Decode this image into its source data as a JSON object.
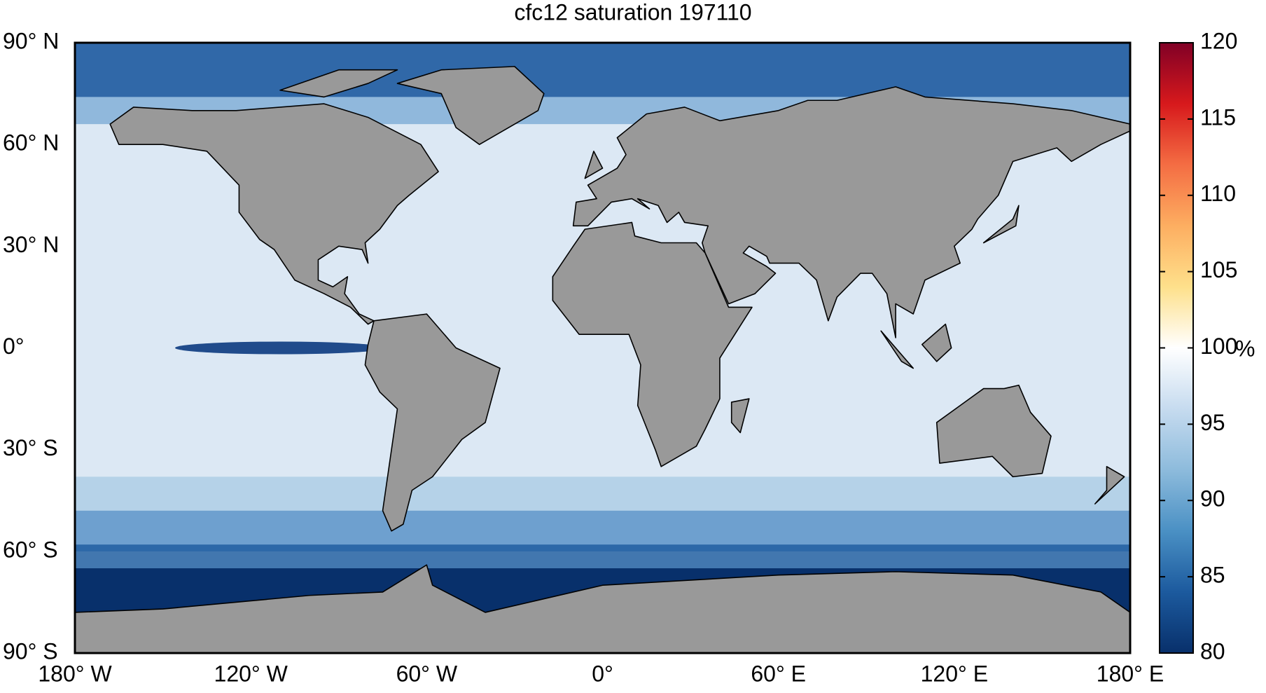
{
  "title": "cfc12 saturation 197110",
  "map": {
    "xlim": [
      -180,
      180
    ],
    "ylim": [
      -90,
      90
    ],
    "xticks": [
      {
        "value": -180,
        "label": "180° W"
      },
      {
        "value": -120,
        "label": "120° W"
      },
      {
        "value": -60,
        "label": "60° W"
      },
      {
        "value": 0,
        "label": "0°"
      },
      {
        "value": 60,
        "label": "60° E"
      },
      {
        "value": 120,
        "label": "120° E"
      },
      {
        "value": 180,
        "label": "180° E"
      }
    ],
    "yticks": [
      {
        "value": 90,
        "label": "90° N"
      },
      {
        "value": 60,
        "label": "60° N"
      },
      {
        "value": 30,
        "label": "30° N"
      },
      {
        "value": 0,
        "label": "0°"
      },
      {
        "value": -30,
        "label": "30° S"
      },
      {
        "value": -60,
        "label": "60° S"
      },
      {
        "value": -90,
        "label": "90° S"
      }
    ]
  },
  "colorbar": {
    "label": "%",
    "clim": [
      80,
      120
    ],
    "ticks": [
      80,
      85,
      90,
      95,
      100,
      105,
      110,
      115,
      120
    ],
    "colors": [
      "#08306b",
      "#1c5a9e",
      "#4a90c4",
      "#8dbbdc",
      "#c6dbef",
      "#ffffff",
      "#fee08b",
      "#fdae61",
      "#f46d43",
      "#d7191c",
      "#800026"
    ]
  }
}
